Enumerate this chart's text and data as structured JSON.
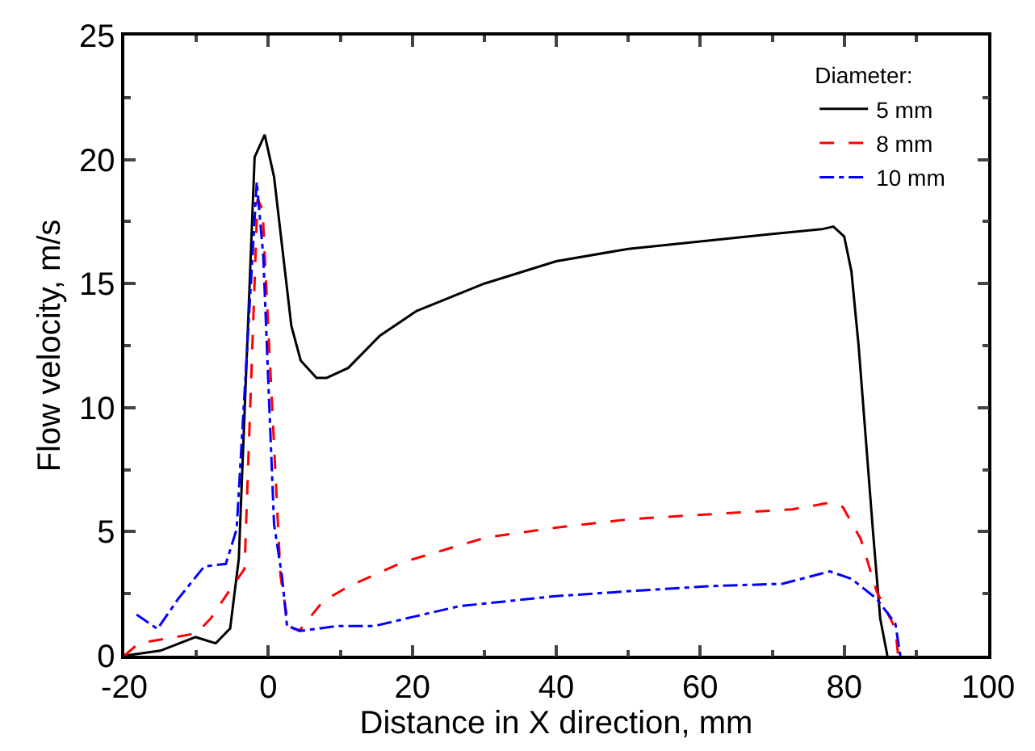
{
  "chart_data": {
    "type": "line",
    "xlabel": "Distance in X direction, mm",
    "ylabel": "Flow velocity, m/s",
    "legend_title": "Diameter:",
    "legend": "top right",
    "marker": "none",
    "xlim": [
      -20,
      100
    ],
    "xticks": [
      -20,
      0,
      20,
      40,
      60,
      80,
      100
    ],
    "ylim": [
      0,
      25
    ],
    "yticks": [
      0,
      5,
      10,
      15,
      20,
      25
    ],
    "series": [
      {
        "name": "5 mm",
        "color": "#000000",
        "line_style": "solid",
        "x": [
          -20,
          -15,
          -10.1,
          -7.3,
          -5.3,
          -4.1,
          -1.9,
          -0.5,
          0.8,
          3.2,
          4.5,
          6.7,
          8.1,
          11.1,
          15.5,
          20.6,
          30,
          40,
          50,
          60,
          70,
          77,
          78.5,
          80,
          81,
          82,
          84,
          85,
          86
        ],
        "values": [
          0,
          0.2,
          0.75,
          0.5,
          1.1,
          3.9,
          20.1,
          21,
          19.3,
          13.3,
          11.9,
          11.2,
          11.2,
          11.6,
          12.9,
          13.9,
          15,
          15.9,
          16.4,
          16.7,
          17.0,
          17.2,
          17.3,
          16.9,
          15.5,
          12.5,
          5,
          1.5,
          0
        ]
      },
      {
        "name": "8 mm",
        "color": "#ff0000",
        "line_style": "dashed",
        "x": [
          -20,
          -18,
          -10,
          -8,
          -5,
          -3.3,
          -1.5,
          -0.8,
          0.1,
          1.7,
          2.8,
          4.3,
          7.6,
          11.2,
          18.6,
          30.3,
          39.9,
          50.1,
          61.1,
          72.8,
          78,
          79.8,
          82.3,
          84.5,
          87.1,
          87.5
        ],
        "values": [
          0,
          0.5,
          0.9,
          1.5,
          2.8,
          3.5,
          18.4,
          18.0,
          12.6,
          3.2,
          1.2,
          1.0,
          2.2,
          2.8,
          3.76,
          4.77,
          5.16,
          5.5,
          5.7,
          5.9,
          6.17,
          6.0,
          4.7,
          2.6,
          1.1,
          0
        ]
      },
      {
        "name": "10 mm",
        "color": "#0000ff",
        "line_style": "dashdot",
        "x": [
          -18.3,
          -15.4,
          -12.5,
          -8.9,
          -5.9,
          -4.4,
          -1.6,
          -0.7,
          0.8,
          1.9,
          2.6,
          4.5,
          9.6,
          14.8,
          20.6,
          26.6,
          39.9,
          50.1,
          61.1,
          71.4,
          78,
          81,
          84.5,
          87.1,
          87.8
        ],
        "values": [
          1.66,
          1.08,
          2.3,
          3.6,
          3.7,
          5.1,
          19.1,
          16.1,
          5.3,
          3.2,
          1.2,
          1.0,
          1.2,
          1.2,
          1.6,
          2.0,
          2.4,
          2.6,
          2.8,
          2.9,
          3.4,
          3.1,
          2.3,
          1.3,
          0
        ]
      }
    ]
  }
}
